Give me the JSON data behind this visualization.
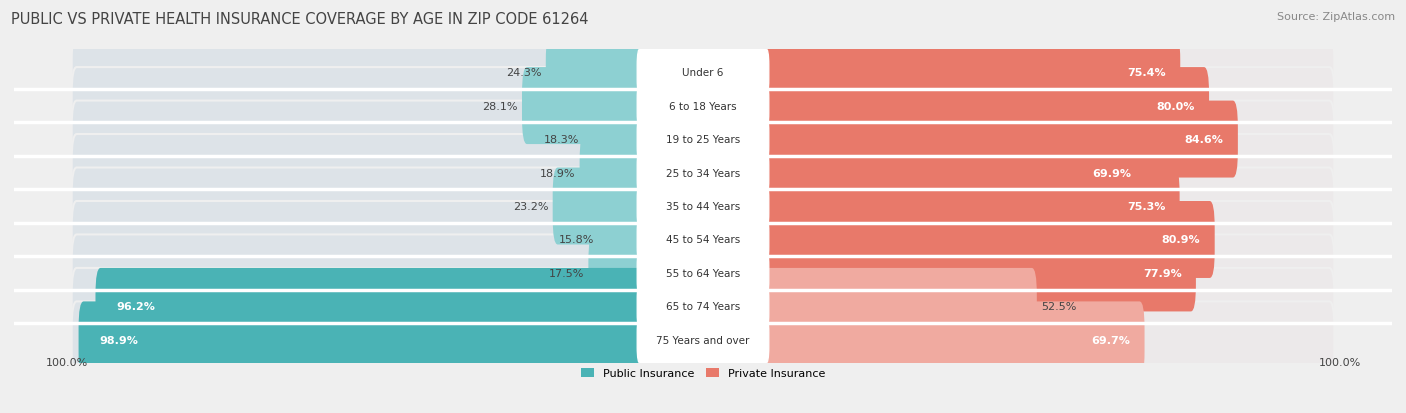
{
  "title": "PUBLIC VS PRIVATE HEALTH INSURANCE COVERAGE BY AGE IN ZIP CODE 61264",
  "source": "Source: ZipAtlas.com",
  "categories": [
    "Under 6",
    "6 to 18 Years",
    "19 to 25 Years",
    "25 to 34 Years",
    "35 to 44 Years",
    "45 to 54 Years",
    "55 to 64 Years",
    "65 to 74 Years",
    "75 Years and over"
  ],
  "public_values": [
    24.3,
    28.1,
    18.3,
    18.9,
    23.2,
    15.8,
    17.5,
    96.2,
    98.9
  ],
  "private_values": [
    75.4,
    80.0,
    84.6,
    69.9,
    75.3,
    80.9,
    77.9,
    52.5,
    69.7
  ],
  "public_color_strong": "#4ab3b5",
  "public_color_light": "#8dd0d2",
  "private_color_strong": "#e8796a",
  "private_color_light": "#f0aaa0",
  "bg_color": "#efefef",
  "bar_bg_left": "#dde3e8",
  "bar_bg_right": "#ece9ea",
  "row_sep_color": "#ffffff",
  "title_color": "#444444",
  "source_color": "#888888",
  "label_dark_color": "#444444",
  "label_light_color": "#ffffff",
  "title_fontsize": 10.5,
  "source_fontsize": 8,
  "value_fontsize": 8,
  "category_fontsize": 7.5,
  "legend_fontsize": 8,
  "bar_height": 0.7,
  "n_rows": 9,
  "scale": 100.0,
  "bottom_label": "100.0%"
}
